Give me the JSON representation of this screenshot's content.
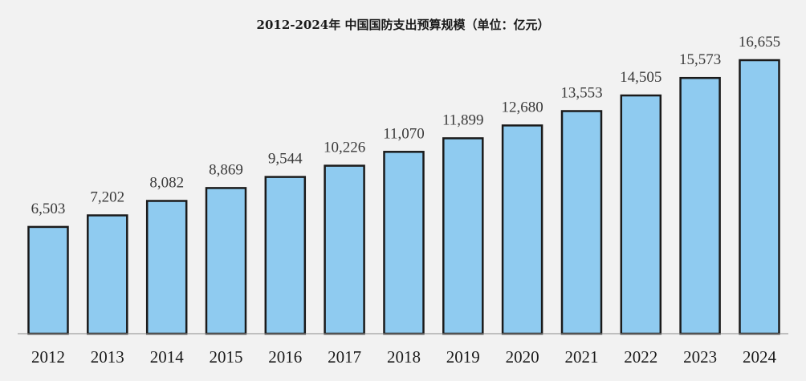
{
  "chart_data": {
    "type": "bar",
    "title": "2012-2024年 中国国防支出预算规模（单位：亿元）",
    "categories": [
      "2012",
      "2013",
      "2014",
      "2015",
      "2016",
      "2017",
      "2018",
      "2019",
      "2020",
      "2021",
      "2022",
      "2023",
      "2024"
    ],
    "values": [
      6503,
      7202,
      8082,
      8869,
      9544,
      10226,
      11070,
      11899,
      12680,
      13553,
      14505,
      15573,
      16655
    ],
    "data_labels": [
      "6,503",
      "7,202",
      "8,082",
      "8,869",
      "9,544",
      "10,226",
      "11,070",
      "11,899",
      "12,680",
      "13,553",
      "14,505",
      "15,573",
      "16,655"
    ],
    "xlabel": "",
    "ylabel": "",
    "ylim": [
      0,
      17500
    ],
    "grid": false,
    "legend": "none",
    "colors": {
      "bar_fill": "#8fcbf0",
      "bar_stroke": "#1a1a1a",
      "background": "#f2f2f2"
    }
  }
}
